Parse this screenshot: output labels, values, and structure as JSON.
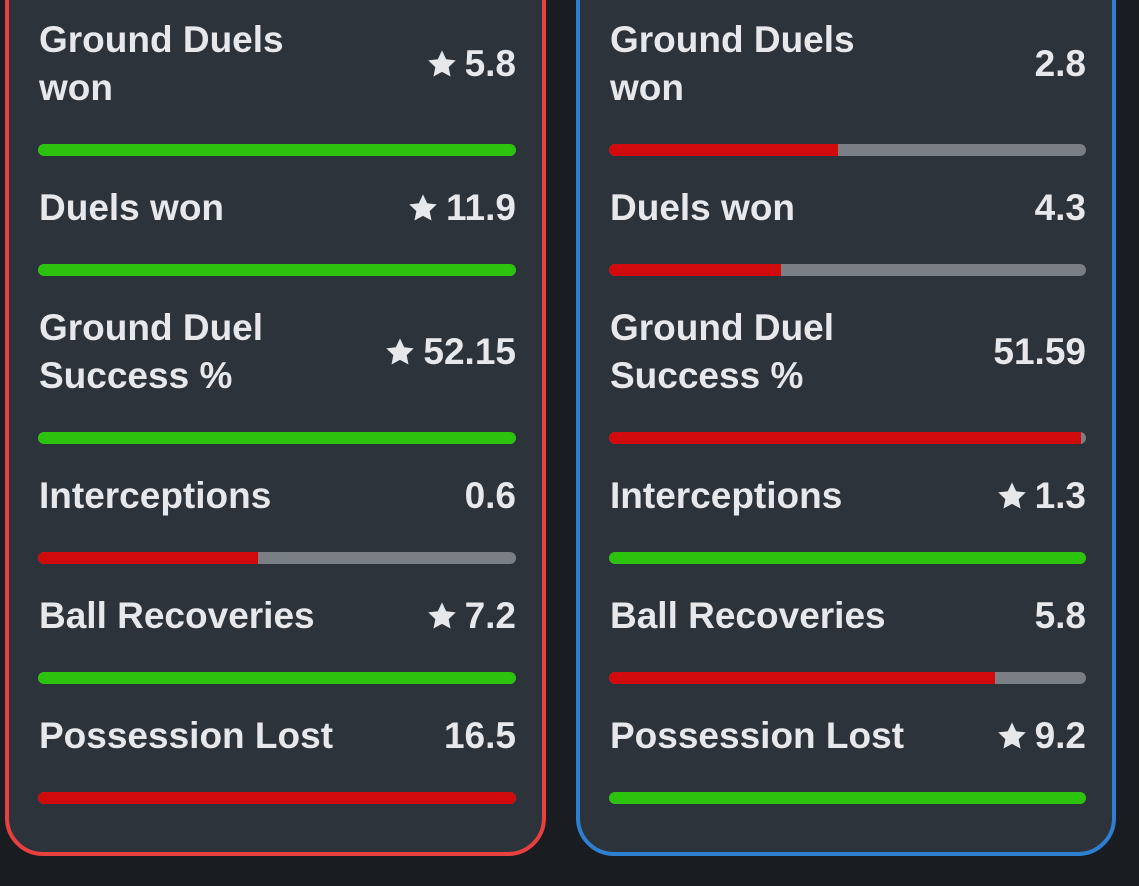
{
  "colors": {
    "left_border": "#e8403e",
    "right_border": "#2f7fd1",
    "good_bar": "#2cc20e",
    "bad_bar": "#d10b0b",
    "bar_track": "#7a7f86"
  },
  "left": {
    "stats": [
      {
        "label_lines": [
          "Ground Duels",
          "won"
        ],
        "value": "5.8",
        "starred": true,
        "bar_fill": 1.0,
        "bar_color": "good"
      },
      {
        "label_lines": [
          "Duels won"
        ],
        "value": "11.9",
        "starred": true,
        "bar_fill": 1.0,
        "bar_color": "good"
      },
      {
        "label_lines": [
          "Ground Duel",
          "Success %"
        ],
        "value": "52.15",
        "starred": true,
        "bar_fill": 1.0,
        "bar_color": "good"
      },
      {
        "label_lines": [
          "Interceptions"
        ],
        "value": "0.6",
        "starred": false,
        "bar_fill": 0.46,
        "bar_color": "bad"
      },
      {
        "label_lines": [
          "Ball Recoveries"
        ],
        "value": "7.2",
        "starred": true,
        "bar_fill": 1.0,
        "bar_color": "good"
      },
      {
        "label_lines": [
          "Possession Lost"
        ],
        "value": "16.5",
        "starred": false,
        "bar_fill": 1.0,
        "bar_color": "bad"
      }
    ]
  },
  "right": {
    "stats": [
      {
        "label_lines": [
          "Ground Duels",
          "won"
        ],
        "value": "2.8",
        "starred": false,
        "bar_fill": 0.48,
        "bar_color": "bad"
      },
      {
        "label_lines": [
          "Duels won"
        ],
        "value": "4.3",
        "starred": false,
        "bar_fill": 0.36,
        "bar_color": "bad"
      },
      {
        "label_lines": [
          "Ground Duel",
          "Success %"
        ],
        "value": "51.59",
        "starred": false,
        "bar_fill": 0.99,
        "bar_color": "bad"
      },
      {
        "label_lines": [
          "Interceptions"
        ],
        "value": "1.3",
        "starred": true,
        "bar_fill": 1.0,
        "bar_color": "good"
      },
      {
        "label_lines": [
          "Ball Recoveries"
        ],
        "value": "5.8",
        "starred": false,
        "bar_fill": 0.81,
        "bar_color": "bad"
      },
      {
        "label_lines": [
          "Possession Lost"
        ],
        "value": "9.2",
        "starred": true,
        "bar_fill": 1.0,
        "bar_color": "good"
      }
    ]
  }
}
